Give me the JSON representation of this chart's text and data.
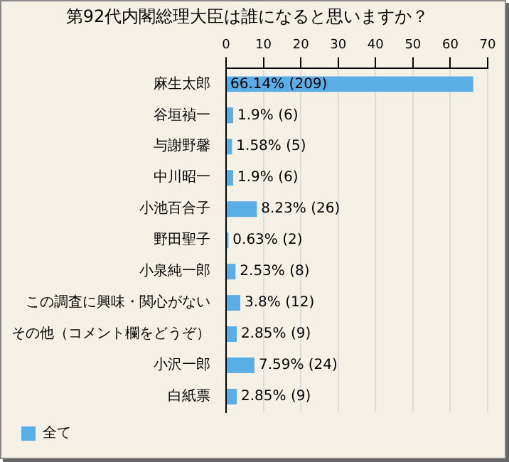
{
  "chart_data": {
    "type": "bar",
    "orientation": "horizontal",
    "title": "第92代内閣総理大臣は誰になると思いますか？",
    "categories": [
      "麻生太郎",
      "谷垣禎一",
      "与謝野馨",
      "中川昭一",
      "小池百合子",
      "野田聖子",
      "小泉純一郎",
      "この調査に興味・関心がない",
      "その他（コメント欄をどうぞ）",
      "小沢一郎",
      "白紙票"
    ],
    "series": [
      {
        "name": "全て",
        "color": "#5aaee6",
        "values": [
          66.14,
          1.9,
          1.58,
          1.9,
          8.23,
          0.63,
          2.53,
          3.8,
          2.85,
          7.59,
          2.85
        ],
        "value_labels": [
          "66.14% (209)",
          "1.9% (6)",
          "1.58% (5)",
          "1.9% (6)",
          "8.23% (26)",
          "0.63% (2)",
          "2.53% (8)",
          "3.8% (12)",
          "2.85% (9)",
          "7.59% (24)",
          "2.85% (9)"
        ]
      }
    ],
    "xlim": [
      0,
      70
    ],
    "xticks": [
      0,
      10,
      20,
      30,
      40,
      50,
      60,
      70
    ],
    "grid": "x",
    "legend": "bottom left"
  }
}
